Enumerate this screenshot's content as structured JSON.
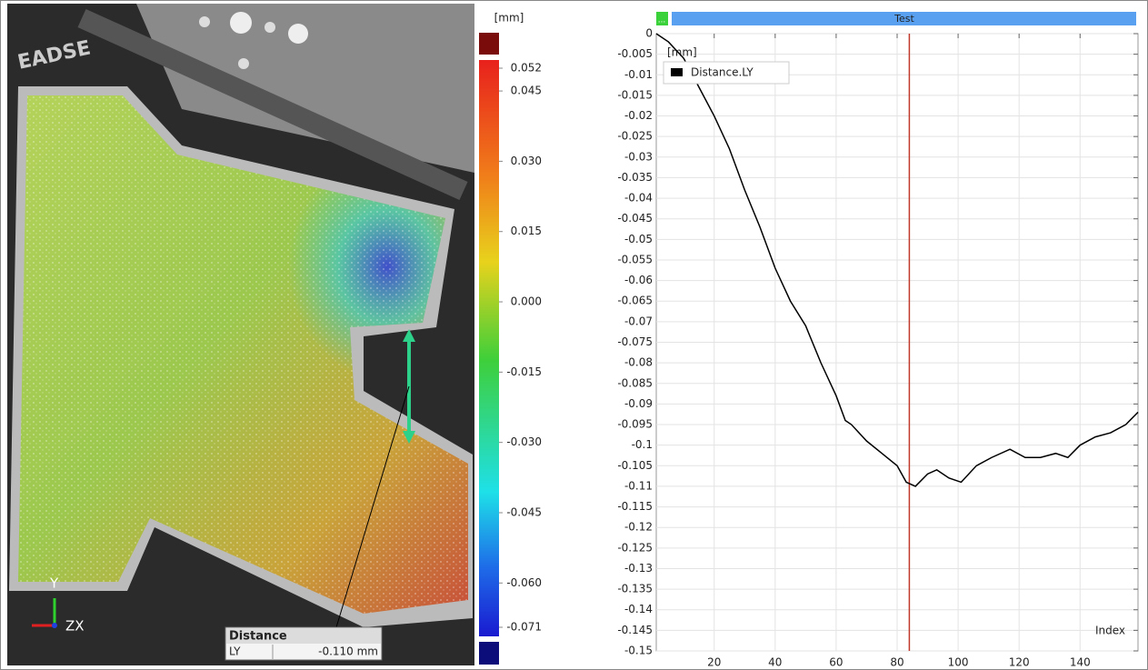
{
  "image_panel": {
    "logo": "EADSE",
    "axis_y": "Y",
    "axis_zx": "ZX",
    "distance_box": {
      "title": "Distance",
      "label": "LY",
      "value": "-0.110 mm"
    }
  },
  "colorbar": {
    "unit": "[mm]",
    "lim": [
      -0.071,
      0.052
    ],
    "ticks": [
      {
        "value": 0.052,
        "label": "0.052"
      },
      {
        "value": 0.045,
        "label": "0.045"
      },
      {
        "value": 0.03,
        "label": "0.030"
      },
      {
        "value": 0.015,
        "label": "0.015"
      },
      {
        "value": 0,
        "label": "0.000"
      },
      {
        "value": -0.015,
        "label": "-0.015"
      },
      {
        "value": -0.03,
        "label": "-0.030"
      },
      {
        "value": -0.045,
        "label": "-0.045"
      },
      {
        "value": -0.06,
        "label": "-0.060"
      },
      {
        "value": -0.071,
        "label": "-0.071"
      }
    ]
  },
  "chart_data": {
    "type": "line",
    "timeline": {
      "marker": "...",
      "label": "Test"
    },
    "y_label": "[mm]",
    "x_label": "Index",
    "x": [
      1,
      5,
      10,
      15,
      20,
      25,
      30,
      35,
      40,
      45,
      50,
      55,
      60,
      63,
      65,
      70,
      75,
      80,
      83,
      86,
      90,
      93,
      97,
      101,
      106,
      111,
      117,
      122,
      127,
      132,
      136,
      140,
      145,
      150,
      155,
      159
    ],
    "series": [
      {
        "name": "Distance.LY",
        "color": "#000000",
        "values": [
          0,
          -0.002,
          -0.006,
          -0.013,
          -0.02,
          -0.028,
          -0.038,
          -0.047,
          -0.057,
          -0.065,
          -0.071,
          -0.08,
          -0.088,
          -0.094,
          -0.095,
          -0.099,
          -0.102,
          -0.105,
          -0.109,
          -0.11,
          -0.107,
          -0.106,
          -0.108,
          -0.109,
          -0.105,
          -0.103,
          -0.101,
          -0.103,
          -0.103,
          -0.102,
          -0.103,
          -0.1,
          -0.098,
          -0.097,
          -0.095,
          -0.092
        ]
      }
    ],
    "xlim": [
      1,
      159
    ],
    "ylim": [
      -0.15,
      0
    ],
    "xticks": [
      20,
      40,
      60,
      80,
      100,
      120,
      140
    ],
    "yticks": [
      0,
      -0.005,
      -0.01,
      -0.015,
      -0.02,
      -0.025,
      -0.03,
      -0.035,
      -0.04,
      -0.045,
      -0.05,
      -0.055,
      -0.06,
      -0.065,
      -0.07,
      -0.075,
      -0.08,
      -0.085,
      -0.09,
      -0.095,
      -0.1,
      -0.105,
      -0.11,
      -0.115,
      -0.12,
      -0.125,
      -0.13,
      -0.135,
      -0.14,
      -0.145,
      -0.15
    ],
    "grid": true,
    "cursor_x": 84,
    "cursor_color": "#c0392b"
  }
}
